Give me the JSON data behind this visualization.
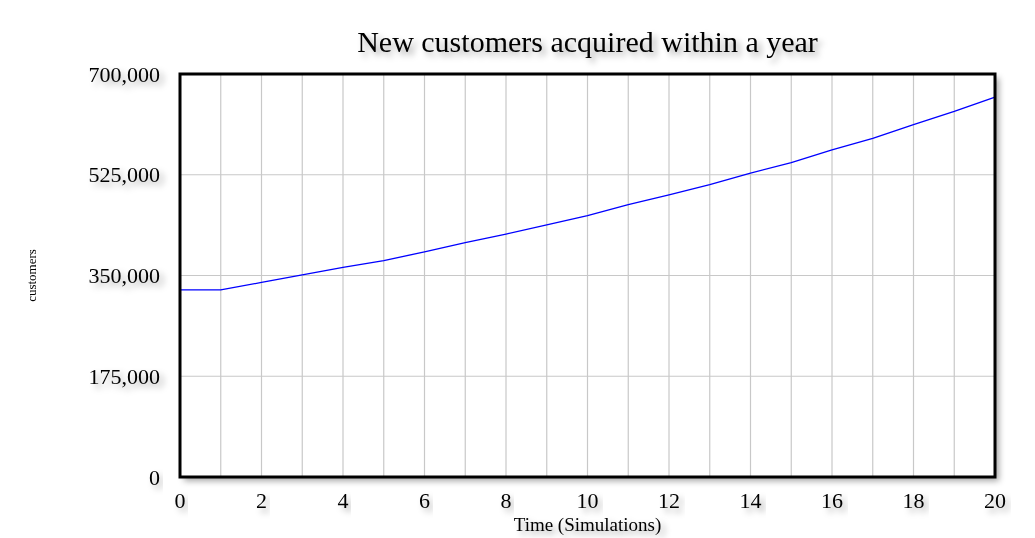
{
  "chart_data": {
    "type": "line",
    "title": "New customers acquired within a year",
    "xlabel": "Time (Simulations)",
    "ylabel": "customers",
    "x": [
      0,
      1,
      2,
      3,
      4,
      5,
      6,
      7,
      8,
      9,
      10,
      11,
      12,
      13,
      14,
      15,
      16,
      17,
      18,
      19,
      20
    ],
    "series": [
      {
        "color": "#0000ff",
        "values": [
          325000,
          325000,
          338000,
          351000,
          364000,
          376000,
          391000,
          407000,
          422000,
          438000,
          454000,
          473000,
          490000,
          508000,
          528000,
          546000,
          568000,
          588000,
          612000,
          635000,
          660000
        ]
      }
    ],
    "xlim": [
      0,
      20
    ],
    "xticks": [
      0,
      2,
      4,
      6,
      8,
      10,
      12,
      14,
      16,
      18,
      20
    ],
    "ylim": [
      0,
      700000
    ],
    "yticks": [
      {
        "value": 0,
        "label": "0"
      },
      {
        "value": 175000,
        "label": "175,000"
      },
      {
        "value": 350000,
        "label": "350,000"
      },
      {
        "value": 525000,
        "label": "525,000"
      },
      {
        "value": 700000,
        "label": "700,000"
      }
    ],
    "grid": true,
    "marker": "none",
    "line_style": "solid"
  }
}
